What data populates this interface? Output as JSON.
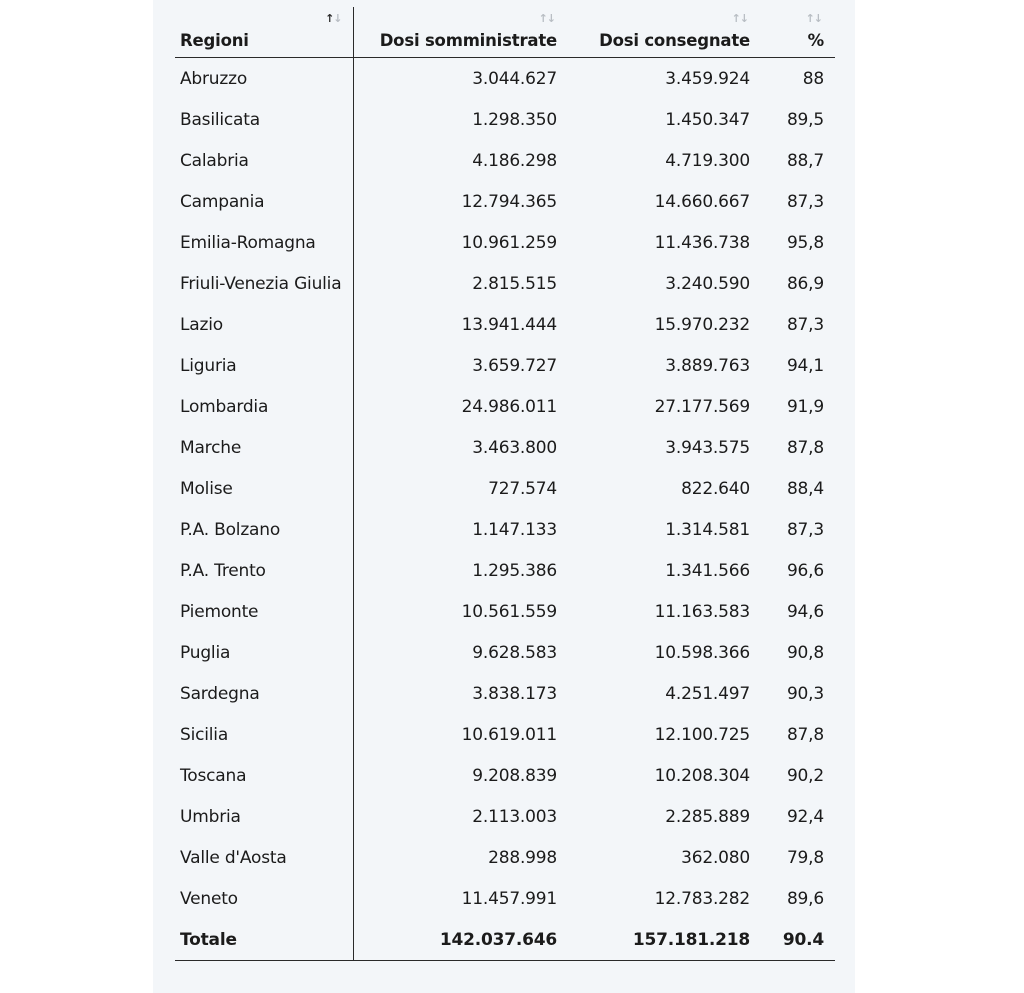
{
  "table": {
    "headers": {
      "regioni": "Regioni",
      "somministrate": "Dosi somministrate",
      "consegnate": "Dosi consegnate",
      "percent": "%"
    },
    "sort_glyph_up": "↑",
    "sort_glyph_down": "↓",
    "rows": [
      {
        "regione": "Abruzzo",
        "somministrate": "3.044.627",
        "consegnate": "3.459.924",
        "percent": "88"
      },
      {
        "regione": "Basilicata",
        "somministrate": "1.298.350",
        "consegnate": "1.450.347",
        "percent": "89,5"
      },
      {
        "regione": "Calabria",
        "somministrate": "4.186.298",
        "consegnate": "4.719.300",
        "percent": "88,7"
      },
      {
        "regione": "Campania",
        "somministrate": "12.794.365",
        "consegnate": "14.660.667",
        "percent": "87,3"
      },
      {
        "regione": "Emilia-Romagna",
        "somministrate": "10.961.259",
        "consegnate": "11.436.738",
        "percent": "95,8"
      },
      {
        "regione": "Friuli-Venezia Giulia",
        "somministrate": "2.815.515",
        "consegnate": "3.240.590",
        "percent": "86,9"
      },
      {
        "regione": "Lazio",
        "somministrate": "13.941.444",
        "consegnate": "15.970.232",
        "percent": "87,3"
      },
      {
        "regione": "Liguria",
        "somministrate": "3.659.727",
        "consegnate": "3.889.763",
        "percent": "94,1"
      },
      {
        "regione": "Lombardia",
        "somministrate": "24.986.011",
        "consegnate": "27.177.569",
        "percent": "91,9"
      },
      {
        "regione": "Marche",
        "somministrate": "3.463.800",
        "consegnate": "3.943.575",
        "percent": "87,8"
      },
      {
        "regione": "Molise",
        "somministrate": "727.574",
        "consegnate": "822.640",
        "percent": "88,4"
      },
      {
        "regione": "P.A. Bolzano",
        "somministrate": "1.147.133",
        "consegnate": "1.314.581",
        "percent": "87,3"
      },
      {
        "regione": "P.A. Trento",
        "somministrate": "1.295.386",
        "consegnate": "1.341.566",
        "percent": "96,6"
      },
      {
        "regione": "Piemonte",
        "somministrate": "10.561.559",
        "consegnate": "11.163.583",
        "percent": "94,6"
      },
      {
        "regione": "Puglia",
        "somministrate": "9.628.583",
        "consegnate": "10.598.366",
        "percent": "90,8"
      },
      {
        "regione": "Sardegna",
        "somministrate": "3.838.173",
        "consegnate": "4.251.497",
        "percent": "90,3"
      },
      {
        "regione": "Sicilia",
        "somministrate": "10.619.011",
        "consegnate": "12.100.725",
        "percent": "87,8"
      },
      {
        "regione": "Toscana",
        "somministrate": "9.208.839",
        "consegnate": "10.208.304",
        "percent": "90,2"
      },
      {
        "regione": "Umbria",
        "somministrate": "2.113.003",
        "consegnate": "2.285.889",
        "percent": "92,4"
      },
      {
        "regione": "Valle d'Aosta",
        "somministrate": "288.998",
        "consegnate": "362.080",
        "percent": "79,8"
      },
      {
        "regione": "Veneto",
        "somministrate": "11.457.991",
        "consegnate": "12.783.282",
        "percent": "89,6"
      }
    ],
    "total": {
      "regione": "Totale",
      "somministrate": "142.037.646",
      "consegnate": "157.181.218",
      "percent": "90.4"
    }
  },
  "colors": {
    "panel_background": "#f3f6f9",
    "text": "#1b1b1b",
    "rule": "#2a2a2a",
    "sort_inactive": "#b9bec4"
  }
}
